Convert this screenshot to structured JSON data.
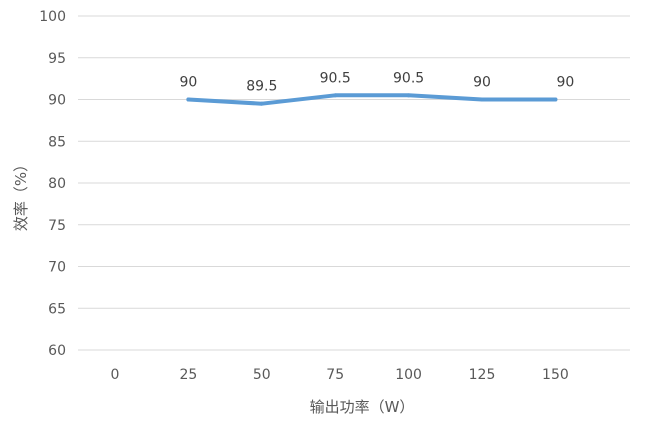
{
  "chart_data": {
    "type": "line",
    "title": "",
    "xlabel": "输出功率（W）",
    "ylabel": "效率（%）",
    "categories": [
      "0",
      "25",
      "50",
      "75",
      "100",
      "125",
      "150"
    ],
    "ylim": [
      60,
      100
    ],
    "yticks": [
      60,
      65,
      70,
      75,
      80,
      85,
      90,
      95,
      100
    ],
    "grid": true,
    "legend": "none",
    "series": [
      {
        "name": "",
        "color": "#5b9bd5",
        "x": [
          25,
          50,
          75,
          100,
          125,
          150
        ],
        "values": [
          90,
          89.5,
          90.5,
          90.5,
          90,
          90
        ],
        "labels": [
          "90",
          "89.5",
          "90.5",
          "90.5",
          "90",
          "90"
        ]
      }
    ]
  }
}
